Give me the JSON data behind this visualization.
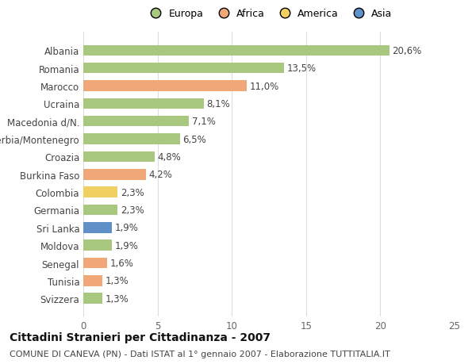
{
  "categories": [
    "Albania",
    "Romania",
    "Marocco",
    "Ucraina",
    "Macedonia d/N.",
    "Serbia/Montenegro",
    "Croazia",
    "Burkina Faso",
    "Colombia",
    "Germania",
    "Sri Lanka",
    "Moldova",
    "Senegal",
    "Tunisia",
    "Svizzera"
  ],
  "values": [
    20.6,
    13.5,
    11.0,
    8.1,
    7.1,
    6.5,
    4.8,
    4.2,
    2.3,
    2.3,
    1.9,
    1.9,
    1.6,
    1.3,
    1.3
  ],
  "continents": [
    "Europa",
    "Europa",
    "Africa",
    "Europa",
    "Europa",
    "Europa",
    "Europa",
    "Africa",
    "America",
    "Europa",
    "Asia",
    "Europa",
    "Africa",
    "Africa",
    "Europa"
  ],
  "colors": {
    "Europa": "#a8c880",
    "Africa": "#f0a878",
    "America": "#f0d060",
    "Asia": "#6090c8"
  },
  "xlim": [
    0,
    25
  ],
  "xticks": [
    0,
    5,
    10,
    15,
    20,
    25
  ],
  "title": "Cittadini Stranieri per Cittadinanza - 2007",
  "subtitle": "COMUNE DI CANEVA (PN) - Dati ISTAT al 1° gennaio 2007 - Elaborazione TUTTITALIA.IT",
  "bg_color": "#ffffff",
  "bar_height": 0.6,
  "grid_color": "#dddddd",
  "label_fontsize": 8.5,
  "tick_fontsize": 8.5,
  "title_fontsize": 10,
  "subtitle_fontsize": 8,
  "legend_fontsize": 9
}
